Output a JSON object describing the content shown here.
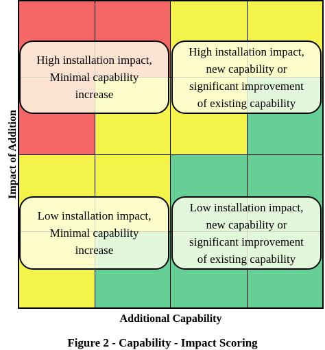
{
  "figure": {
    "y_axis_label": "Impact of Addition",
    "x_axis_label": "Additional Capability",
    "caption": "Figure 2 - Capability - Impact Scoring"
  },
  "grid_colors": [
    [
      "#f46566",
      "#f46566",
      "#f4f34a",
      "#f4f34a"
    ],
    [
      "#f46566",
      "#f4f34a",
      "#f4f34a",
      "#65cf96"
    ],
    [
      "#f4f34a",
      "#f4f34a",
      "#65cf96",
      "#65cf96"
    ],
    [
      "#f4f34a",
      "#65cf96",
      "#65cf96",
      "#65cf96"
    ]
  ],
  "quadrants": {
    "top_left": {
      "lines": [
        "High installation impact,",
        "Minimal capability",
        "increase"
      ],
      "fill": "rgba(255,255,233,0.82)"
    },
    "top_right": {
      "lines": [
        "High installation impact,",
        "new capability or",
        "significant improvement",
        "of existing capability"
      ],
      "fill": "rgba(255,255,233,0.82)"
    },
    "bottom_left": {
      "lines": [
        "Low installation impact,",
        "Minimal capability",
        "increase"
      ],
      "fill": "rgba(255,255,233,0.82)"
    },
    "bottom_right": {
      "lines": [
        "Low installation impact,",
        "new capability or",
        "significant improvement",
        "of existing capability"
      ],
      "fill": "rgba(255,255,233,0.82)"
    }
  }
}
